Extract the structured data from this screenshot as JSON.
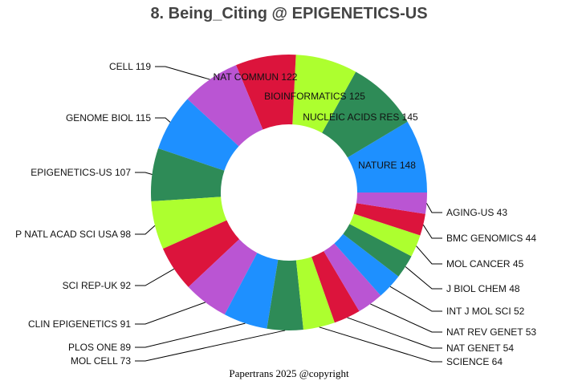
{
  "chart_data": {
    "type": "pie",
    "donut": true,
    "title": "8. Being_Citing @ EPIGENETICS-US",
    "footer": "Papertrans 2025 @copyright",
    "start": "east, counterclockwise",
    "slices": [
      {
        "label": "NATURE",
        "value": 148,
        "color": "#1E90FF",
        "text": "NATURE 148"
      },
      {
        "label": "NUCLEIC ACIDS RES",
        "value": 145,
        "color": "#2E8B57",
        "text": "NUCLEIC ACIDS RES 145"
      },
      {
        "label": "BIOINFORMATICS",
        "value": 125,
        "color": "#ADFF2F",
        "text": "BIOINFORMATICS 125"
      },
      {
        "label": "NAT COMMUN",
        "value": 122,
        "color": "#DC143C",
        "text": "NAT COMMUN 122"
      },
      {
        "label": "CELL",
        "value": 119,
        "color": "#BA55D3",
        "text": "CELL 119"
      },
      {
        "label": "GENOME BIOL",
        "value": 115,
        "color": "#1E90FF",
        "text": "GENOME BIOL 115"
      },
      {
        "label": "EPIGENETICS-US",
        "value": 107,
        "color": "#2E8B57",
        "text": "EPIGENETICS-US 107"
      },
      {
        "label": "P NATL ACAD SCI USA",
        "value": 98,
        "color": "#ADFF2F",
        "text": "P NATL ACAD SCI USA 98"
      },
      {
        "label": "SCI REP-UK",
        "value": 92,
        "color": "#DC143C",
        "text": "SCI REP-UK 92"
      },
      {
        "label": "CLIN EPIGENETICS",
        "value": 91,
        "color": "#BA55D3",
        "text": "CLIN EPIGENETICS 91"
      },
      {
        "label": "PLOS ONE",
        "value": 89,
        "color": "#1E90FF",
        "text": "PLOS ONE 89"
      },
      {
        "label": "MOL CELL",
        "value": 73,
        "color": "#2E8B57",
        "text": "MOL CELL 73"
      },
      {
        "label": "SCIENCE",
        "value": 64,
        "color": "#ADFF2F",
        "text": "SCIENCE 64"
      },
      {
        "label": "NAT GENET",
        "value": 54,
        "color": "#DC143C",
        "text": "NAT GENET 54"
      },
      {
        "label": "NAT REV GENET",
        "value": 53,
        "color": "#BA55D3",
        "text": "NAT REV GENET 53"
      },
      {
        "label": "INT J MOL SCI",
        "value": 52,
        "color": "#1E90FF",
        "text": "INT J MOL SCI 52"
      },
      {
        "label": "J BIOL CHEM",
        "value": 48,
        "color": "#2E8B57",
        "text": "J BIOL CHEM 48"
      },
      {
        "label": "MOL CANCER",
        "value": 45,
        "color": "#ADFF2F",
        "text": "MOL CANCER 45"
      },
      {
        "label": "BMC GENOMICS",
        "value": 44,
        "color": "#DC143C",
        "text": "BMC GENOMICS 44"
      },
      {
        "label": "AGING-US",
        "value": 43,
        "color": "#BA55D3",
        "text": "AGING-US 43"
      }
    ]
  }
}
